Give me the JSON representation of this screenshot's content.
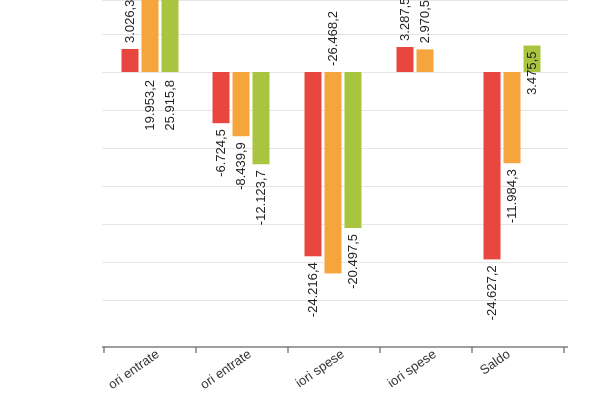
{
  "chart_data": {
    "type": "bar",
    "categories": [
      "Maggiori entrate",
      "Minori entrate",
      "Maggiori spese",
      "Minori spese",
      "Saldo"
    ],
    "series": [
      {
        "color": "#e8463e",
        "values": [
          3026.3,
          -6724.5,
          -24216.4,
          3287.5,
          -24627.2
        ]
      },
      {
        "color": "#f5a53c",
        "values": [
          19953.2,
          -8439.9,
          -26468.2,
          2970.5,
          -11984.3
        ]
      },
      {
        "color": "#a9c540",
        "values": [
          25915.8,
          -12123.7,
          -20497.5,
          null,
          3475.5
        ]
      }
    ],
    "data_labels": [
      [
        "3.026,3",
        "-6.724,5",
        "-24.216,4",
        "3.287,5",
        "-24.627,2"
      ],
      [
        "19.953,2",
        "-8.439,9",
        "-26.468,2",
        "2.970,5",
        "-11.984,3"
      ],
      [
        "25.915,8",
        "-12.123,7",
        "-20.497,5",
        "",
        "3.475,5"
      ]
    ],
    "tick_labels": [
      "ori entrate",
      "ori entrate",
      "iori spese",
      "iori spese",
      "Saldo"
    ],
    "grid": true,
    "legend": "none"
  }
}
